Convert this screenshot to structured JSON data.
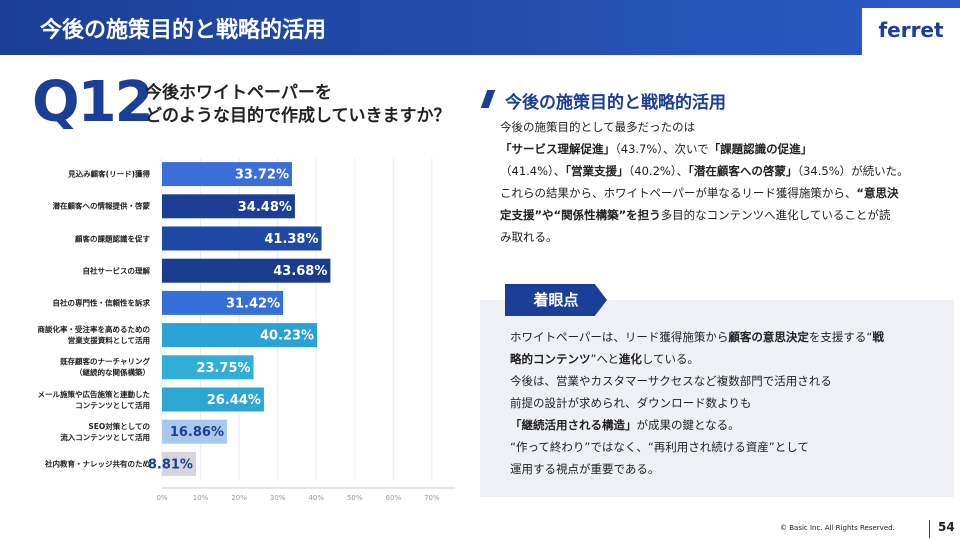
{
  "header": {
    "title": "今後の施策目的と戦略的活用",
    "logo": "ferret"
  },
  "question": {
    "number": "Q12",
    "text": "今後ホワイトペーパーを\nどのような目的で作成していきますか？"
  },
  "chart_data": {
    "type": "bar",
    "orientation": "horizontal",
    "categories": [
      "見込み顧客(リード)獲得",
      "潜在顧客への情報提供・啓蒙",
      "顧客の課題認識を促す",
      "自社サービスの理解",
      "自社の専門性・信頼性を訴求",
      "商談化率・受注率を高めるための\n営業支援資料として活用",
      "既存顧客のナーチャリング\n（継続的な関係構築）",
      "メール施策や広告施策と連動した\nコンテンツとして活用",
      "SEO対策としての\n流入コンテンツとして活用",
      "社内教育・ナレッジ共有のため"
    ],
    "values": [
      33.72,
      34.48,
      41.38,
      43.68,
      31.42,
      40.23,
      23.75,
      26.44,
      16.86,
      8.81
    ],
    "value_labels": [
      "33.72%",
      "34.48%",
      "41.38%",
      "43.68%",
      "31.42%",
      "40.23%",
      "23.75%",
      "26.44%",
      "16.86%",
      "8.81%"
    ],
    "colors": [
      "#3b6fd6",
      "#1c3f94",
      "#1e4aa6",
      "#1a3c8c",
      "#3570d8",
      "#2aa2d6",
      "#31afd9",
      "#2ea6d2",
      "#a8c8ee",
      "#d3d6dc"
    ],
    "xlim": [
      0,
      76
    ],
    "xticks": [
      {
        "value": 0,
        "label": "0%"
      },
      {
        "value": 10,
        "label": "10%"
      },
      {
        "value": 20,
        "label": "20%"
      },
      {
        "value": 30,
        "label": "30%"
      },
      {
        "value": 40,
        "label": "40%"
      },
      {
        "value": 50,
        "label": "50%"
      },
      {
        "value": 60,
        "label": "60%"
      },
      {
        "value": 70,
        "label": "70%"
      }
    ],
    "grid": true
  },
  "summary": {
    "heading": "今後の施策目的と戦略的活用",
    "lines": [
      [
        {
          "text": "今後の施策目的として最多だったのは"
        }
      ],
      [
        {
          "text": "「サービス理解促進」",
          "bold": true
        },
        {
          "text": "（43.7%）、次いで"
        },
        {
          "text": "「課題認識の促進」",
          "bold": true
        }
      ],
      [
        {
          "text": "（41.4%）、"
        },
        {
          "text": "「営業支援」",
          "bold": true
        },
        {
          "text": "（40.2%）、"
        },
        {
          "text": "「潜在顧客への啓蒙」",
          "bold": true
        },
        {
          "text": "（34.5%）が続いた。"
        }
      ],
      [
        {
          "text": "これらの結果から、ホワイトペーパーが単なるリード獲得施策から、"
        },
        {
          "text": "“意思決",
          "bold": true
        }
      ],
      [
        {
          "text": "定支援”や“関係性構築”を担う",
          "bold": true
        },
        {
          "text": "多目的なコンテンツへ進化していることが読"
        }
      ],
      [
        {
          "text": "み取れる。"
        }
      ]
    ]
  },
  "insight": {
    "label": "着眼点",
    "lines": [
      [
        {
          "text": "ホワイトペーパーは、リード獲得施策から"
        },
        {
          "text": "顧客の意思決定",
          "bold": true
        },
        {
          "text": "を支援する“"
        },
        {
          "text": "戦",
          "bold": true
        }
      ],
      [
        {
          "text": "略的コンテンツ",
          "bold": true
        },
        {
          "text": "”へと"
        },
        {
          "text": "進化",
          "bold": true
        },
        {
          "text": "している。"
        }
      ],
      [
        {
          "text": "今後は、営業やカスタマーサクセスなど複数部門で活用される"
        }
      ],
      [
        {
          "text": "前提の設計が求められ、ダウンロード数よりも"
        }
      ],
      [
        {
          "text": "「継続活用される構造」",
          "bold": true
        },
        {
          "text": "が成果の鍵となる。"
        }
      ],
      [
        {
          "text": "“作って終わり”ではなく、“再利用され続ける資産”として"
        }
      ],
      [
        {
          "text": "運用する視点が重要である。"
        }
      ]
    ]
  },
  "footer": {
    "copyright": "© Basic Inc. All Rights Reserved.",
    "page": "54"
  }
}
